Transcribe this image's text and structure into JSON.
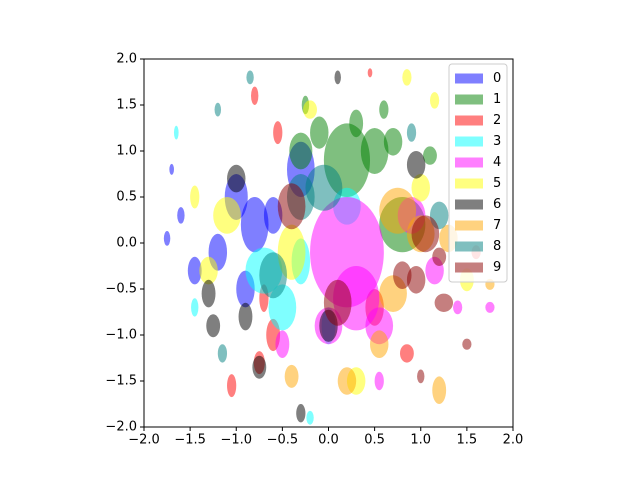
{
  "chart_data": {
    "type": "scatter",
    "marker": "ellipse",
    "alpha": 0.5,
    "legend": "upper right",
    "xlim": [
      -2,
      2
    ],
    "ylim": [
      -2,
      2
    ],
    "xticks": [
      {
        "value": -2,
        "label": "−2.0"
      },
      {
        "value": -1.5,
        "label": "−1.5"
      },
      {
        "value": -1,
        "label": "−1.0"
      },
      {
        "value": -0.5,
        "label": "−0.5"
      },
      {
        "value": 0,
        "label": "0.0"
      },
      0.5,
      {
        "value": 1,
        "label": "1.0"
      },
      1.5,
      {
        "value": 2,
        "label": "2.0"
      }
    ],
    "yticks": [
      {
        "value": -2,
        "label": "−2.0"
      },
      {
        "value": -1.5,
        "label": "−1.5"
      },
      {
        "value": -1,
        "label": "−1.0"
      },
      {
        "value": -0.5,
        "label": "−0.5"
      },
      {
        "value": 0,
        "label": "0.0"
      },
      0.5,
      {
        "value": 1,
        "label": "1.0"
      },
      1.5,
      {
        "value": 2,
        "label": "2.0"
      }
    ],
    "series": [
      {
        "name": "0",
        "color": "#0000ff",
        "x": [
          -0.8,
          -1.2,
          -1.6,
          -1.75,
          -0.9,
          -0.3,
          -1.0,
          -1.45,
          -0.6,
          -1.7
        ],
        "y": [
          0.2,
          -0.1,
          0.3,
          0.05,
          -0.5,
          0.8,
          0.5,
          -0.3,
          0.3,
          0.8
        ],
        "widths": [
          0.3,
          0.2,
          0.08,
          0.07,
          0.2,
          0.3,
          0.25,
          0.15,
          0.2,
          0.05
        ],
        "heights": [
          0.6,
          0.4,
          0.18,
          0.16,
          0.4,
          0.6,
          0.5,
          0.3,
          0.4,
          0.12
        ]
      },
      {
        "name": "1",
        "color": "#008000",
        "x": [
          0.2,
          0.5,
          -0.1,
          0.8,
          0.3,
          -0.3,
          1.1,
          0.7,
          -0.25,
          0.6
        ],
        "y": [
          0.9,
          1.0,
          1.2,
          0.2,
          1.3,
          1.0,
          0.95,
          1.1,
          1.5,
          1.45
        ],
        "widths": [
          0.5,
          0.3,
          0.2,
          0.5,
          0.15,
          0.25,
          0.15,
          0.2,
          0.08,
          0.1
        ],
        "heights": [
          0.8,
          0.5,
          0.35,
          0.6,
          0.3,
          0.4,
          0.2,
          0.3,
          0.2,
          0.2
        ]
      },
      {
        "name": "2",
        "color": "#ff0000",
        "x": [
          -0.6,
          -0.7,
          -0.8,
          -0.55,
          -1.05,
          0.5,
          0.85,
          -0.75,
          1.6,
          0.45
        ],
        "y": [
          -1.0,
          -0.6,
          1.6,
          1.2,
          -1.55,
          -0.7,
          -1.2,
          -1.3,
          -0.1,
          1.85
        ],
        "widths": [
          0.15,
          0.1,
          0.08,
          0.1,
          0.1,
          0.2,
          0.15,
          0.12,
          0.1,
          0.05
        ],
        "heights": [
          0.35,
          0.3,
          0.2,
          0.25,
          0.25,
          0.4,
          0.2,
          0.25,
          0.15,
          0.1
        ]
      },
      {
        "name": "3",
        "color": "#00ffff",
        "x": [
          -0.5,
          0.0,
          0.2,
          -0.7,
          -1.45,
          -1.65,
          -0.2,
          -0.3
        ],
        "y": [
          -0.7,
          -0.9,
          0.4,
          -0.3,
          -0.7,
          1.2,
          -1.9,
          -0.2
        ],
        "widths": [
          0.3,
          0.15,
          0.3,
          0.4,
          0.08,
          0.05,
          0.08,
          0.2
        ],
        "heights": [
          0.5,
          0.4,
          0.4,
          0.5,
          0.2,
          0.15,
          0.15,
          0.5
        ]
      },
      {
        "name": "4",
        "color": "#ff00ff",
        "x": [
          0.2,
          0.3,
          0.0,
          0.55,
          1.15,
          0.55,
          1.4,
          1.75,
          -0.5,
          0.9
        ],
        "y": [
          -0.1,
          -0.6,
          -0.9,
          -0.9,
          -0.3,
          -1.5,
          -0.7,
          -0.7,
          -1.1,
          0.3
        ],
        "widths": [
          0.8,
          0.5,
          0.3,
          0.3,
          0.2,
          0.1,
          0.1,
          0.1,
          0.15,
          0.3
        ],
        "heights": [
          1.2,
          0.7,
          0.4,
          0.4,
          0.3,
          0.2,
          0.15,
          0.12,
          0.3,
          0.4
        ]
      },
      {
        "name": "5",
        "color": "#ffff00",
        "x": [
          -1.1,
          -0.4,
          -1.45,
          -0.2,
          1.15,
          0.85,
          0.3,
          1.0,
          -1.3,
          1.5
        ],
        "y": [
          0.3,
          -0.1,
          0.5,
          1.45,
          1.55,
          1.8,
          -1.5,
          0.6,
          -0.3,
          -0.4
        ],
        "widths": [
          0.3,
          0.3,
          0.1,
          0.15,
          0.1,
          0.1,
          0.2,
          0.2,
          0.2,
          0.15
        ],
        "heights": [
          0.4,
          0.6,
          0.25,
          0.2,
          0.18,
          0.18,
          0.3,
          0.3,
          0.3,
          0.25
        ]
      },
      {
        "name": "6",
        "color": "#000000",
        "x": [
          -1.0,
          -0.9,
          -1.25,
          0.1,
          -0.3,
          0.95,
          -0.75,
          -1.3,
          0.0
        ],
        "y": [
          0.7,
          -0.8,
          -0.9,
          1.8,
          -1.85,
          0.85,
          -1.35,
          -0.55,
          -0.9
        ],
        "widths": [
          0.2,
          0.15,
          0.15,
          0.07,
          0.1,
          0.2,
          0.15,
          0.15,
          0.2
        ],
        "heights": [
          0.3,
          0.3,
          0.25,
          0.15,
          0.2,
          0.3,
          0.25,
          0.3,
          0.35
        ]
      },
      {
        "name": "7",
        "color": "#ffa500",
        "x": [
          0.75,
          0.7,
          1.2,
          0.55,
          -0.4,
          1.75,
          0.2,
          1.0,
          1.3
        ],
        "y": [
          0.35,
          -0.55,
          -1.6,
          -1.1,
          -1.45,
          -0.45,
          -1.5,
          0.1,
          0.05
        ],
        "widths": [
          0.4,
          0.3,
          0.15,
          0.2,
          0.15,
          0.1,
          0.2,
          0.3,
          0.2
        ],
        "heights": [
          0.5,
          0.4,
          0.3,
          0.3,
          0.25,
          0.12,
          0.3,
          0.4,
          0.3
        ]
      },
      {
        "name": "8",
        "color": "#008080",
        "x": [
          -0.05,
          -0.6,
          -0.85,
          -1.15,
          -1.2,
          -0.3,
          1.2,
          0.9
        ],
        "y": [
          0.6,
          -0.35,
          1.8,
          -1.2,
          1.45,
          0.5,
          0.3,
          1.2
        ],
        "widths": [
          0.4,
          0.3,
          0.08,
          0.1,
          0.07,
          0.3,
          0.2,
          0.1
        ],
        "heights": [
          0.5,
          0.5,
          0.15,
          0.2,
          0.15,
          0.5,
          0.3,
          0.2
        ]
      },
      {
        "name": "9",
        "color": "#8b0000",
        "x": [
          -0.4,
          0.1,
          0.95,
          1.25,
          1.05,
          1.2,
          1.0,
          1.5,
          0.8
        ],
        "y": [
          0.4,
          -0.65,
          -0.4,
          -0.65,
          0.1,
          -0.15,
          -1.45,
          -1.1,
          -0.35
        ],
        "widths": [
          0.3,
          0.3,
          0.2,
          0.2,
          0.3,
          0.15,
          0.08,
          0.1,
          0.2
        ],
        "heights": [
          0.5,
          0.5,
          0.3,
          0.2,
          0.4,
          0.2,
          0.15,
          0.12,
          0.3
        ]
      }
    ]
  }
}
